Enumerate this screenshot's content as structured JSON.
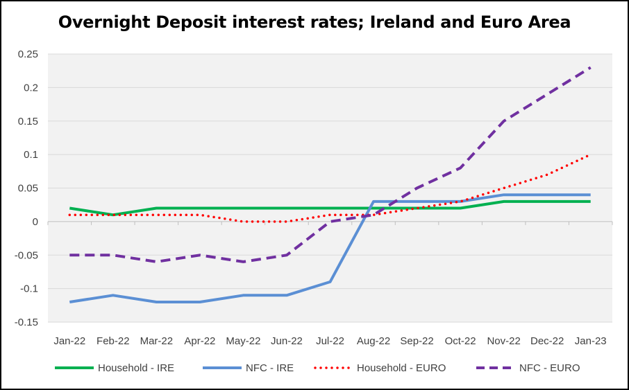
{
  "chart_data": {
    "type": "line",
    "title": "Overnight Deposit interest rates; Ireland and Euro Area",
    "categories": [
      "Jan-22",
      "Feb-22",
      "Mar-22",
      "Apr-22",
      "May-22",
      "Jun-22",
      "Jul-22",
      "Aug-22",
      "Sep-22",
      "Oct-22",
      "Nov-22",
      "Dec-22",
      "Jan-23"
    ],
    "y_ticks": [
      "0.25",
      "0.2",
      "0.15",
      "0.1",
      "0.05",
      "0",
      "-0.05",
      "-0.1",
      "-0.15"
    ],
    "ylim": [
      -0.15,
      0.25
    ],
    "grid": true,
    "legend_position": "bottom",
    "series": [
      {
        "name": "Household - IRE",
        "color": "#00B050",
        "style": "solid",
        "values": [
          0.02,
          0.01,
          0.02,
          0.02,
          0.02,
          0.02,
          0.02,
          0.02,
          0.02,
          0.02,
          0.03,
          0.03,
          0.03
        ]
      },
      {
        "name": "NFC - IRE",
        "color": "#5B8FD4",
        "style": "solid",
        "values": [
          -0.12,
          -0.11,
          -0.12,
          -0.12,
          -0.11,
          -0.11,
          -0.09,
          0.03,
          0.03,
          0.03,
          0.04,
          0.04,
          0.04
        ]
      },
      {
        "name": "Household - EURO",
        "color": "#FF0000",
        "style": "dotted",
        "values": [
          0.01,
          0.01,
          0.01,
          0.01,
          0.0,
          0.0,
          0.01,
          0.01,
          0.02,
          0.03,
          0.05,
          0.07,
          0.1
        ]
      },
      {
        "name": "NFC - EURO",
        "color": "#7030A0",
        "style": "dashed",
        "values": [
          -0.05,
          -0.05,
          -0.06,
          -0.05,
          -0.06,
          -0.05,
          0.0,
          0.01,
          0.05,
          0.08,
          0.15,
          0.19,
          0.23
        ]
      }
    ]
  }
}
